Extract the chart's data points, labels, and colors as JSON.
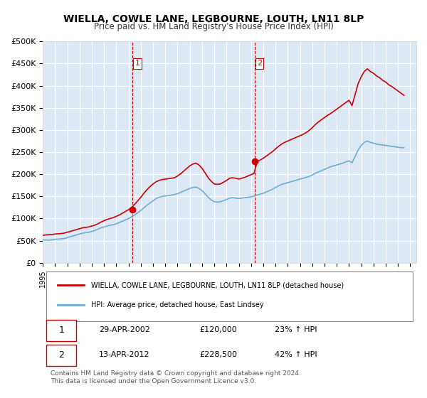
{
  "title": "WIELLA, COWLE LANE, LEGBOURNE, LOUTH, LN11 8LP",
  "subtitle": "Price paid vs. HM Land Registry's House Price Index (HPI)",
  "background_color": "#dce9f5",
  "plot_bg_color": "#dce9f5",
  "ylabel_ticks": [
    "£0",
    "£50K",
    "£100K",
    "£150K",
    "£200K",
    "£250K",
    "£300K",
    "£350K",
    "£400K",
    "£450K",
    "£500K"
  ],
  "ytick_values": [
    0,
    50000,
    100000,
    150000,
    200000,
    250000,
    300000,
    350000,
    400000,
    450000,
    500000
  ],
  "ylim": [
    0,
    500000
  ],
  "xlim_start": 1995.0,
  "xlim_end": 2025.5,
  "vline1_x": 2002.32,
  "vline2_x": 2012.28,
  "marker1_x": 2002.32,
  "marker1_y": 120000,
  "marker2_x": 2012.28,
  "marker2_y": 228500,
  "legend_line1": "WIELLA, COWLE LANE, LEGBOURNE, LOUTH, LN11 8LP (detached house)",
  "legend_line2": "HPI: Average price, detached house, East Lindsey",
  "table_rows": [
    {
      "num": "1",
      "date": "29-APR-2002",
      "price": "£120,000",
      "change": "23% ↑ HPI"
    },
    {
      "num": "2",
      "date": "13-APR-2012",
      "price": "£228,500",
      "change": "42% ↑ HPI"
    }
  ],
  "footer": "Contains HM Land Registry data © Crown copyright and database right 2024.\nThis data is licensed under the Open Government Licence v3.0.",
  "hpi_color": "#6baed6",
  "price_color": "#cc0000",
  "vline_color": "#cc0000",
  "hpi_data_x": [
    1995.0,
    1995.25,
    1995.5,
    1995.75,
    1996.0,
    1996.25,
    1996.5,
    1996.75,
    1997.0,
    1997.25,
    1997.5,
    1997.75,
    1998.0,
    1998.25,
    1998.5,
    1998.75,
    1999.0,
    1999.25,
    1999.5,
    1999.75,
    2000.0,
    2000.25,
    2000.5,
    2000.75,
    2001.0,
    2001.25,
    2001.5,
    2001.75,
    2002.0,
    2002.25,
    2002.5,
    2002.75,
    2003.0,
    2003.25,
    2003.5,
    2003.75,
    2004.0,
    2004.25,
    2004.5,
    2004.75,
    2005.0,
    2005.25,
    2005.5,
    2005.75,
    2006.0,
    2006.25,
    2006.5,
    2006.75,
    2007.0,
    2007.25,
    2007.5,
    2007.75,
    2008.0,
    2008.25,
    2008.5,
    2008.75,
    2009.0,
    2009.25,
    2009.5,
    2009.75,
    2010.0,
    2010.25,
    2010.5,
    2010.75,
    2011.0,
    2011.25,
    2011.5,
    2011.75,
    2012.0,
    2012.25,
    2012.5,
    2012.75,
    2013.0,
    2013.25,
    2013.5,
    2013.75,
    2014.0,
    2014.25,
    2014.5,
    2014.75,
    2015.0,
    2015.25,
    2015.5,
    2015.75,
    2016.0,
    2016.25,
    2016.5,
    2016.75,
    2017.0,
    2017.25,
    2017.5,
    2017.75,
    2018.0,
    2018.25,
    2018.5,
    2018.75,
    2019.0,
    2019.25,
    2019.5,
    2019.75,
    2020.0,
    2020.25,
    2020.5,
    2020.75,
    2021.0,
    2021.25,
    2021.5,
    2021.75,
    2022.0,
    2022.25,
    2022.5,
    2022.75,
    2023.0,
    2023.25,
    2023.5,
    2023.75,
    2024.0,
    2024.25,
    2024.5
  ],
  "hpi_data_y": [
    52000,
    51500,
    51000,
    52000,
    53000,
    53500,
    54000,
    55000,
    57000,
    59000,
    61000,
    63000,
    65000,
    67000,
    68000,
    69000,
    71000,
    73000,
    76000,
    79000,
    81000,
    83000,
    85000,
    86000,
    88000,
    91000,
    94000,
    97000,
    100000,
    104000,
    108000,
    113000,
    118000,
    124000,
    130000,
    135000,
    140000,
    145000,
    148000,
    150000,
    151000,
    152000,
    153000,
    154000,
    156000,
    159000,
    162000,
    165000,
    168000,
    170000,
    171000,
    168000,
    163000,
    156000,
    148000,
    142000,
    138000,
    137000,
    138000,
    140000,
    143000,
    146000,
    147000,
    146000,
    145000,
    146000,
    147000,
    148000,
    149000,
    151000,
    153000,
    155000,
    157000,
    160000,
    163000,
    166000,
    170000,
    174000,
    177000,
    179000,
    181000,
    183000,
    185000,
    187000,
    189000,
    191000,
    193000,
    195000,
    198000,
    202000,
    205000,
    208000,
    211000,
    214000,
    217000,
    219000,
    221000,
    223000,
    225000,
    228000,
    230000,
    226000,
    240000,
    255000,
    265000,
    272000,
    275000,
    272000,
    270000,
    268000,
    267000,
    266000,
    265000,
    264000,
    263000,
    262000,
    261000,
    260000,
    260000
  ],
  "price_data_x": [
    1995.0,
    1995.25,
    1995.5,
    1995.75,
    1996.0,
    1996.25,
    1996.5,
    1996.75,
    1997.0,
    1997.25,
    1997.5,
    1997.75,
    1998.0,
    1998.25,
    1998.5,
    1998.75,
    1999.0,
    1999.25,
    1999.5,
    1999.75,
    2000.0,
    2000.25,
    2000.5,
    2000.75,
    2001.0,
    2001.25,
    2001.5,
    2001.75,
    2002.0,
    2002.25,
    2002.5,
    2002.75,
    2003.0,
    2003.25,
    2003.5,
    2003.75,
    2004.0,
    2004.25,
    2004.5,
    2004.75,
    2005.0,
    2005.25,
    2005.5,
    2005.75,
    2006.0,
    2006.25,
    2006.5,
    2006.75,
    2007.0,
    2007.25,
    2007.5,
    2007.75,
    2008.0,
    2008.25,
    2008.5,
    2008.75,
    2009.0,
    2009.25,
    2009.5,
    2009.75,
    2010.0,
    2010.25,
    2010.5,
    2010.75,
    2011.0,
    2011.25,
    2011.5,
    2011.75,
    2012.0,
    2012.25,
    2012.5,
    2012.75,
    2013.0,
    2013.25,
    2013.5,
    2013.75,
    2014.0,
    2014.25,
    2014.5,
    2014.75,
    2015.0,
    2015.25,
    2015.5,
    2015.75,
    2016.0,
    2016.25,
    2016.5,
    2016.75,
    2017.0,
    2017.25,
    2017.5,
    2017.75,
    2018.0,
    2018.25,
    2018.5,
    2018.75,
    2019.0,
    2019.25,
    2019.5,
    2019.75,
    2020.0,
    2020.25,
    2020.5,
    2020.75,
    2021.0,
    2021.25,
    2021.5,
    2021.75,
    2022.0,
    2022.25,
    2022.5,
    2022.75,
    2023.0,
    2023.25,
    2023.5,
    2023.75,
    2024.0,
    2024.25,
    2024.5
  ],
  "price_data_y": [
    62000,
    63000,
    63500,
    64000,
    65000,
    65500,
    66000,
    67000,
    69000,
    71000,
    73000,
    75000,
    77000,
    79000,
    80000,
    81000,
    83000,
    85000,
    88000,
    92000,
    95000,
    98000,
    100000,
    102000,
    105000,
    108000,
    112000,
    116000,
    120000,
    125000,
    132000,
    140000,
    148000,
    157000,
    165000,
    172000,
    178000,
    183000,
    186000,
    188000,
    189000,
    190000,
    191000,
    192000,
    196000,
    201000,
    207000,
    213000,
    219000,
    223000,
    225000,
    221000,
    213000,
    203000,
    192000,
    184000,
    178000,
    177000,
    178000,
    182000,
    186000,
    191000,
    192000,
    191000,
    189000,
    191000,
    193000,
    196000,
    199000,
    202000,
    228500,
    232000,
    236000,
    241000,
    246000,
    251000,
    257000,
    263000,
    268000,
    272000,
    275000,
    278000,
    281000,
    284000,
    287000,
    290000,
    294000,
    299000,
    305000,
    312000,
    318000,
    323000,
    328000,
    333000,
    337000,
    342000,
    347000,
    352000,
    357000,
    362000,
    367000,
    355000,
    380000,
    405000,
    420000,
    432000,
    438000,
    432000,
    428000,
    422000,
    418000,
    412000,
    408000,
    402000,
    398000,
    393000,
    388000,
    383000,
    378000
  ]
}
